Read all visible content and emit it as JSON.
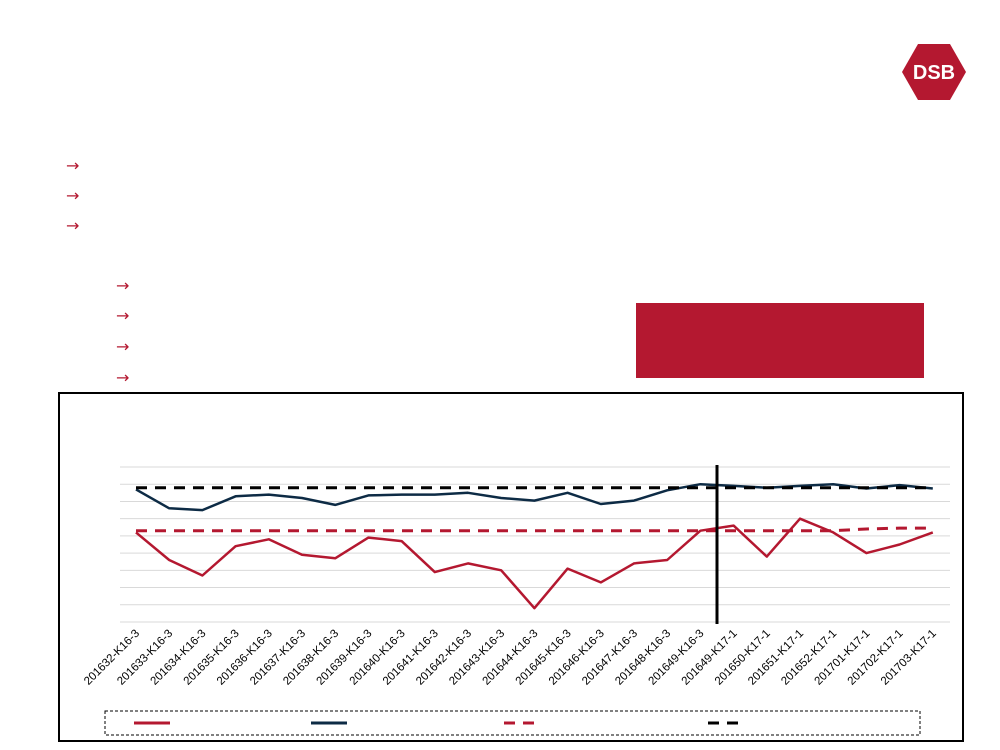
{
  "logo": {
    "text": "DSB",
    "color": "#b41830"
  },
  "bullets": {
    "level1_count": 3,
    "level2_count": 4,
    "arrow_glyph": "→"
  },
  "colors": {
    "accent": "#b41830",
    "navy": "#0d2b45",
    "black": "#000000",
    "grid": "#d9d9d9"
  },
  "chart_data": {
    "type": "line",
    "categories": [
      "201632-K16-3",
      "201633-K16-3",
      "201634-K16-3",
      "201635-K16-3",
      "201636-K16-3",
      "201637-K16-3",
      "201638-K16-3",
      "201639-K16-3",
      "201640-K16-3",
      "201641-K16-3",
      "201642-K16-3",
      "201643-K16-3",
      "201644-K16-3",
      "201645-K16-3",
      "201646-K16-3",
      "201647-K16-3",
      "201648-K16-3",
      "201649-K16-3",
      "201649-K17-1",
      "201650-K17-1",
      "201651-K17-1",
      "201652-K17-1",
      "201701-K17-1",
      "201702-K17-1",
      "201703-K17-1"
    ],
    "ylim": [
      0,
      9
    ],
    "grid": true,
    "legend_position": "bottom",
    "vertical_marker_after_index": 17,
    "series": [
      {
        "values": [
          5.2,
          3.6,
          2.7,
          4.4,
          4.8,
          3.9,
          3.7,
          4.9,
          4.7,
          2.9,
          3.4,
          3.0,
          0.8,
          3.1,
          2.3,
          3.4,
          3.6,
          5.3,
          5.6,
          3.8,
          6.0,
          5.2,
          4.0,
          4.5,
          5.2
        ],
        "color": "#b41830",
        "style": "solid"
      },
      {
        "values": [
          7.7,
          6.6,
          6.5,
          7.3,
          7.4,
          7.2,
          6.8,
          7.35,
          7.4,
          7.4,
          7.5,
          7.2,
          7.05,
          7.5,
          6.85,
          7.05,
          7.65,
          8.0,
          7.9,
          7.8,
          7.9,
          8.0,
          7.75,
          7.95,
          7.75
        ],
        "color": "#0d2b45",
        "style": "solid"
      },
      {
        "values": [
          5.3,
          5.3,
          5.3,
          5.3,
          5.3,
          5.3,
          5.3,
          5.3,
          5.3,
          5.3,
          5.3,
          5.3,
          5.3,
          5.3,
          5.3,
          5.3,
          5.3,
          5.3,
          5.3,
          5.3,
          5.3,
          5.3,
          5.4,
          5.45,
          5.45
        ],
        "color": "#b41830",
        "style": "dashed"
      },
      {
        "values": [
          7.8,
          7.8,
          7.8,
          7.8,
          7.8,
          7.8,
          7.8,
          7.8,
          7.8,
          7.8,
          7.8,
          7.8,
          7.8,
          7.8,
          7.8,
          7.8,
          7.8,
          7.8,
          7.8,
          7.8,
          7.8,
          7.8,
          7.8,
          7.8,
          7.8
        ],
        "color": "#000000",
        "style": "dashed"
      }
    ]
  }
}
